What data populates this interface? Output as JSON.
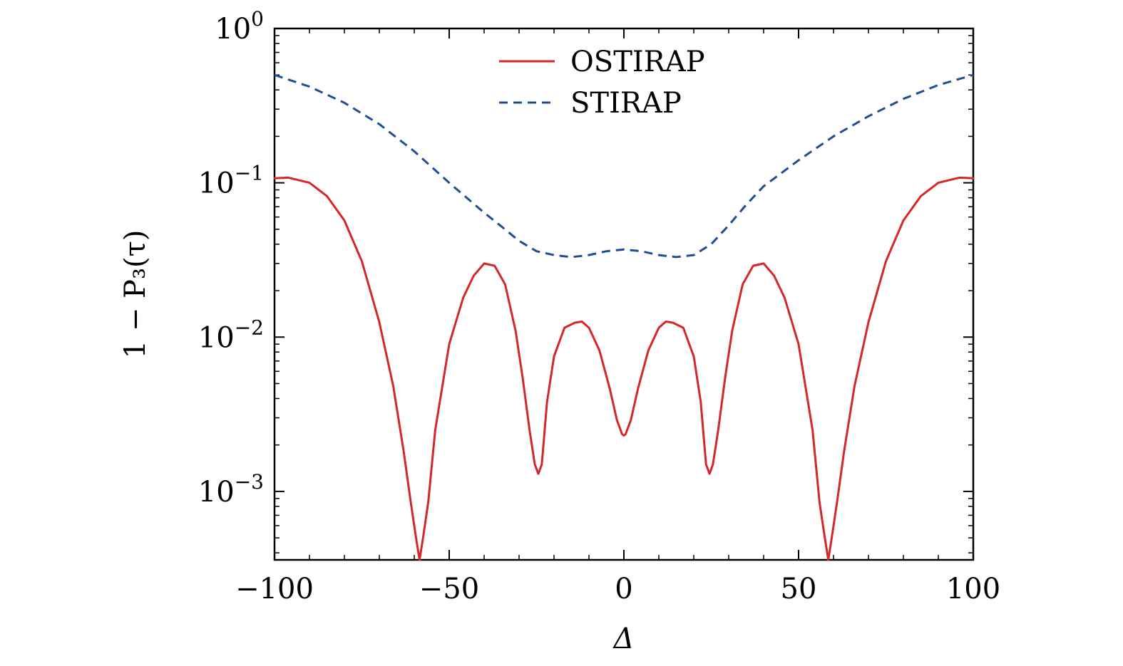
{
  "chart_data": {
    "type": "line",
    "title": "",
    "xlabel": "Δ",
    "ylabel": "1 − P₃(τ)",
    "xlim": [
      -100,
      100
    ],
    "ylim": [
      0.00036,
      1
    ],
    "yscale": "log",
    "grid": false,
    "legend_position": "top-center",
    "x_ticks": [
      -100,
      -50,
      0,
      50,
      100
    ],
    "x_tick_labels": [
      "−100",
      "−50",
      "0",
      "50",
      "100"
    ],
    "y_ticks": [
      {
        "value": 1,
        "base": "10",
        "exp": "0"
      },
      {
        "value": 0.1,
        "base": "10",
        "exp": "−1"
      },
      {
        "value": 0.01,
        "base": "10",
        "exp": "−2"
      },
      {
        "value": 0.001,
        "base": "10",
        "exp": "−3"
      }
    ],
    "series": [
      {
        "name": "OSTIRAP",
        "color": "#d62728",
        "style": "solid",
        "x": [
          -100,
          -96,
          -90,
          -85,
          -80,
          -75,
          -70,
          -66,
          -63,
          -61,
          -59.5,
          -58.5,
          -57.5,
          -56,
          -54,
          -50,
          -46,
          -43,
          -40,
          -37,
          -34,
          -31,
          -29,
          -27,
          -25.5,
          -24.5,
          -23.5,
          -22,
          -20,
          -17,
          -14,
          -12,
          -10,
          -7,
          -4,
          -2,
          -0.5,
          0,
          0.5,
          2,
          4,
          7,
          10,
          12,
          14,
          17,
          20,
          22,
          23.5,
          24.5,
          25.5,
          27,
          29,
          31,
          34,
          37,
          40,
          43,
          46,
          50,
          54,
          56,
          57.5,
          58.5,
          59.5,
          61,
          63,
          66,
          70,
          75,
          80,
          85,
          90,
          96,
          100
        ],
        "y": [
          0.107,
          0.108,
          0.1,
          0.082,
          0.057,
          0.031,
          0.0125,
          0.0048,
          0.0018,
          0.00085,
          0.0005,
          0.00036,
          0.0005,
          0.00085,
          0.0025,
          0.009,
          0.018,
          0.025,
          0.03,
          0.029,
          0.022,
          0.011,
          0.0055,
          0.0025,
          0.0015,
          0.0013,
          0.0015,
          0.0038,
          0.0075,
          0.0115,
          0.0124,
          0.0126,
          0.0115,
          0.0082,
          0.0046,
          0.0029,
          0.00235,
          0.0023,
          0.00235,
          0.0029,
          0.0046,
          0.0082,
          0.0115,
          0.0126,
          0.0124,
          0.0115,
          0.0075,
          0.0038,
          0.0015,
          0.0013,
          0.0015,
          0.0025,
          0.0055,
          0.011,
          0.022,
          0.029,
          0.03,
          0.025,
          0.018,
          0.009,
          0.0025,
          0.00085,
          0.0005,
          0.00036,
          0.0005,
          0.00085,
          0.0018,
          0.0048,
          0.0125,
          0.031,
          0.057,
          0.082,
          0.1,
          0.108,
          0.107
        ]
      },
      {
        "name": "STIRAP",
        "color": "#1f4e94",
        "style": "dashed",
        "x": [
          -100,
          -90,
          -80,
          -70,
          -60,
          -50,
          -40,
          -35,
          -30,
          -25,
          -20,
          -15,
          -10,
          -5,
          0,
          5,
          10,
          15,
          20,
          25,
          30,
          35,
          40,
          50,
          60,
          70,
          80,
          90,
          100
        ],
        "y": [
          0.5,
          0.42,
          0.33,
          0.24,
          0.16,
          0.1,
          0.064,
          0.052,
          0.042,
          0.036,
          0.034,
          0.033,
          0.034,
          0.036,
          0.037,
          0.036,
          0.034,
          0.033,
          0.034,
          0.04,
          0.053,
          0.072,
          0.095,
          0.14,
          0.2,
          0.27,
          0.35,
          0.43,
          0.5
        ]
      }
    ]
  }
}
